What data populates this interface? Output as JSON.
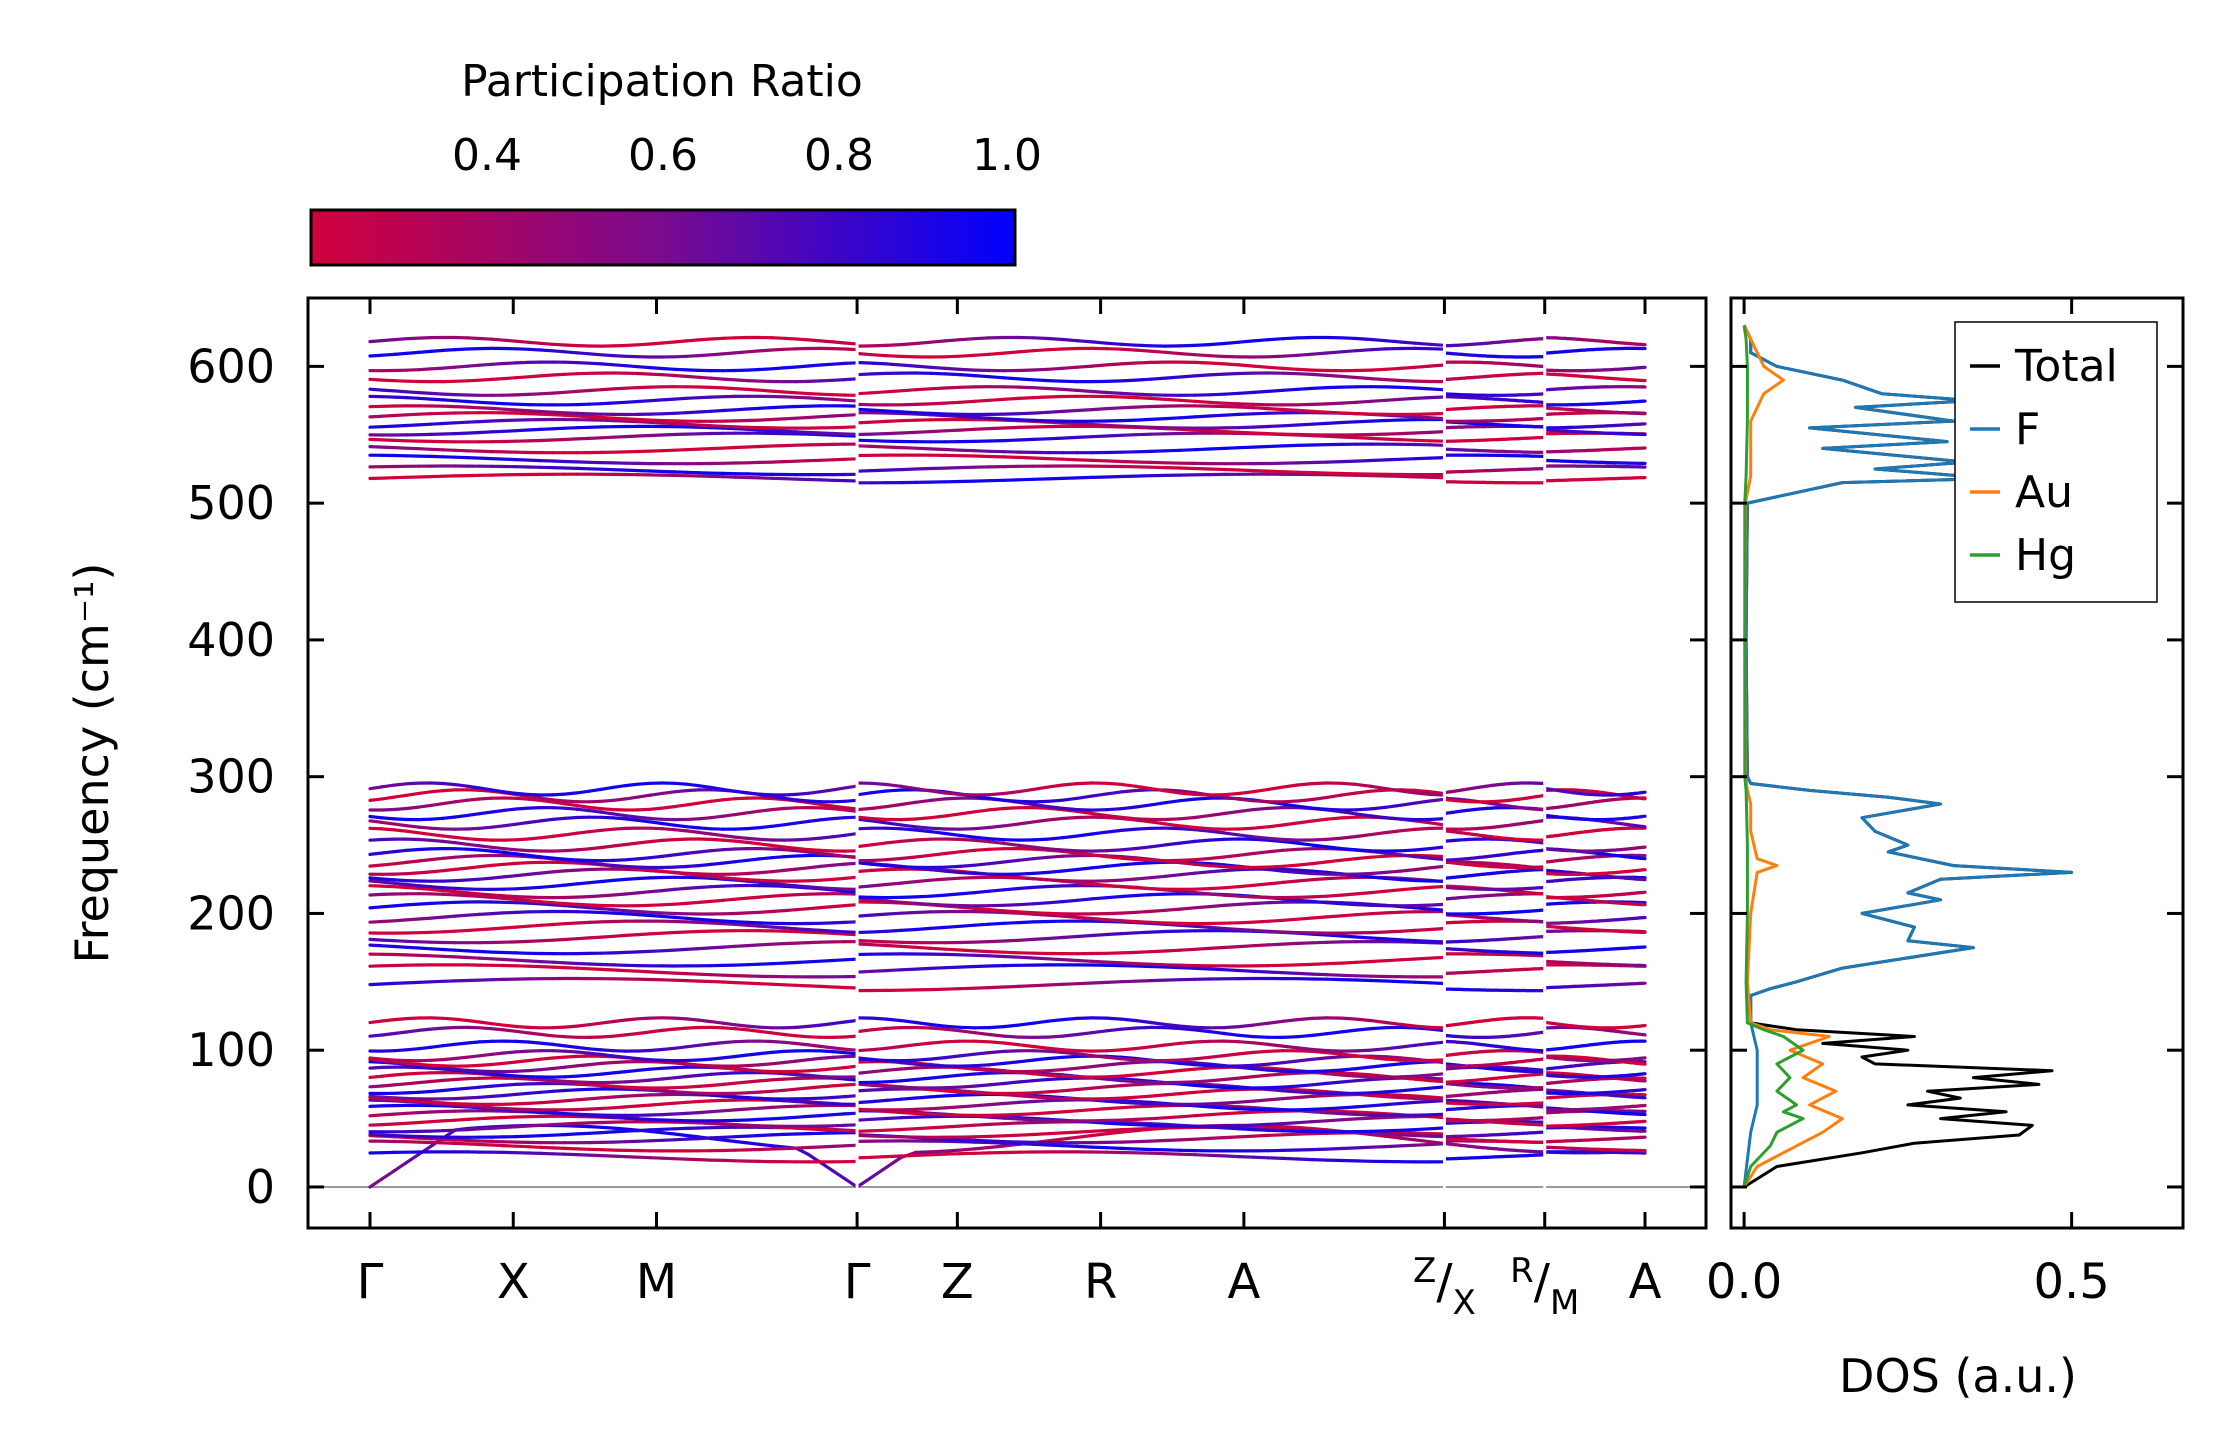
{
  "chart_data": [
    {
      "type": "line",
      "subtype": "phonon-band-structure",
      "ylabel": "Frequency (cm⁻¹)",
      "ylim": [
        -30,
        650
      ],
      "yticks": [
        0,
        100,
        200,
        300,
        400,
        500,
        600
      ],
      "ytick_labels": [
        "0",
        "100",
        "200",
        "300",
        "400",
        "500",
        "600"
      ],
      "kpoint_labels": [
        "Γ",
        "X",
        "M",
        "Γ",
        "Z",
        "R",
        "A",
        "Z/X",
        "R/M",
        "A"
      ],
      "kpoint_positions": [
        0,
        1,
        2,
        3.4,
        4.1,
        5.1,
        6.1,
        7.5,
        8.2,
        8.9
      ],
      "path_breaks": [
        3.4,
        7.5,
        8.2
      ],
      "color_encoding": "participation ratio",
      "band_groups": [
        {
          "name": "acoustic/low",
          "range": [
            0,
            122
          ],
          "bands": [
            0,
            22,
            30,
            36,
            40,
            44,
            48,
            52,
            56,
            60,
            64,
            68,
            72,
            76,
            80,
            84,
            88,
            92,
            96,
            103,
            113,
            120
          ]
        },
        {
          "name": "middle",
          "range": [
            145,
            292
          ],
          "bands": [
            148,
            158,
            166,
            175,
            183,
            190,
            197,
            204,
            210,
            216,
            222,
            228,
            233,
            238,
            243,
            250,
            258,
            266,
            273,
            280,
            286,
            291
          ]
        },
        {
          "name": "high",
          "range": [
            515,
            620
          ],
          "bands": [
            518,
            524,
            532,
            540,
            548,
            553,
            558,
            563,
            568,
            575,
            582,
            592,
            600,
            610,
            618
          ]
        }
      ]
    },
    {
      "type": "line",
      "subtype": "density-of-states",
      "xlabel": "DOS (a.u.)",
      "xlim": [
        -0.02,
        0.67
      ],
      "xticks": [
        0.0,
        0.5
      ],
      "xtick_labels": [
        "0.0",
        "0.5"
      ],
      "ylim": [
        -30,
        650
      ],
      "legend_position": "top-right",
      "series": [
        {
          "name": "Total",
          "color": "#000000",
          "frequency": [
            0,
            15,
            25,
            32,
            38,
            45,
            50,
            55,
            60,
            65,
            70,
            75,
            80,
            85,
            90,
            95,
            100,
            105,
            110,
            115,
            120,
            140,
            145,
            150,
            160,
            175,
            180,
            190,
            200,
            210,
            215,
            225,
            230,
            235,
            245,
            250,
            260,
            270,
            280,
            285,
            290,
            295,
            300,
            400,
            500,
            515,
            518,
            525,
            530,
            540,
            545,
            555,
            560,
            570,
            575,
            580,
            590,
            600,
            610,
            620,
            630
          ],
          "dos": [
            0,
            0.05,
            0.18,
            0.26,
            0.42,
            0.44,
            0.3,
            0.4,
            0.25,
            0.33,
            0.28,
            0.45,
            0.35,
            0.47,
            0.2,
            0.18,
            0.25,
            0.12,
            0.26,
            0.08,
            0.01,
            0.01,
            0.04,
            0.08,
            0.15,
            0.35,
            0.25,
            0.26,
            0.18,
            0.3,
            0.25,
            0.3,
            0.5,
            0.32,
            0.22,
            0.25,
            0.2,
            0.18,
            0.3,
            0.22,
            0.1,
            0.01,
            0.005,
            0.003,
            0.005,
            0.15,
            0.38,
            0.2,
            0.34,
            0.12,
            0.31,
            0.1,
            0.32,
            0.17,
            0.35,
            0.21,
            0.15,
            0.05,
            0.01,
            0.01,
            0
          ],
          "labels": []
        },
        {
          "name": "F",
          "color": "#1f77b4",
          "frequency": [
            0,
            20,
            40,
            60,
            80,
            100,
            120,
            140,
            145,
            150,
            160,
            175,
            180,
            190,
            200,
            210,
            215,
            225,
            230,
            235,
            245,
            250,
            260,
            270,
            280,
            285,
            290,
            295,
            300,
            400,
            500,
            515,
            518,
            525,
            530,
            540,
            545,
            555,
            560,
            570,
            575,
            580,
            590,
            600,
            610,
            620,
            630
          ],
          "dos": [
            0,
            0.005,
            0.01,
            0.02,
            0.02,
            0.02,
            0.01,
            0.01,
            0.04,
            0.08,
            0.15,
            0.35,
            0.25,
            0.26,
            0.18,
            0.3,
            0.25,
            0.3,
            0.5,
            0.32,
            0.22,
            0.25,
            0.2,
            0.18,
            0.3,
            0.22,
            0.1,
            0.01,
            0.005,
            0.003,
            0.005,
            0.15,
            0.38,
            0.2,
            0.34,
            0.12,
            0.31,
            0.1,
            0.32,
            0.17,
            0.35,
            0.21,
            0.15,
            0.05,
            0.01,
            0.01,
            0
          ]
        },
        {
          "name": "Au",
          "color": "#ff7f0e",
          "frequency": [
            0,
            15,
            30,
            40,
            50,
            60,
            70,
            80,
            90,
            100,
            110,
            115,
            120,
            150,
            200,
            230,
            235,
            240,
            260,
            280,
            290,
            300,
            400,
            500,
            520,
            560,
            580,
            590,
            600,
            620,
            630
          ],
          "dos": [
            0,
            0.02,
            0.08,
            0.12,
            0.15,
            0.1,
            0.14,
            0.09,
            0.12,
            0.07,
            0.13,
            0.04,
            0.01,
            0.005,
            0.01,
            0.02,
            0.05,
            0.02,
            0.01,
            0.01,
            0.005,
            0.002,
            0.001,
            0.002,
            0.01,
            0.01,
            0.03,
            0.06,
            0.03,
            0.01,
            0
          ]
        },
        {
          "name": "Hg",
          "color": "#2ca02c",
          "frequency": [
            0,
            15,
            30,
            40,
            50,
            55,
            60,
            70,
            80,
            90,
            100,
            110,
            115,
            120,
            150,
            200,
            250,
            290,
            300,
            400,
            500,
            520,
            560,
            600,
            620,
            630
          ],
          "dos": [
            0,
            0.01,
            0.04,
            0.05,
            0.09,
            0.06,
            0.08,
            0.05,
            0.07,
            0.05,
            0.09,
            0.06,
            0.03,
            0.005,
            0.003,
            0.005,
            0.005,
            0.003,
            0.001,
            0.001,
            0.001,
            0.003,
            0.005,
            0.005,
            0.003,
            0
          ]
        }
      ]
    },
    {
      "type": "colorbar",
      "title": "Participation Ratio",
      "range": [
        0.2,
        1.0
      ],
      "ticks": [
        0.4,
        0.6,
        0.8,
        1.0
      ],
      "tick_labels": [
        "0.4",
        "0.6",
        "0.8",
        "1.0"
      ],
      "color_low": "#d1003c",
      "color_high": "#0000ff"
    }
  ]
}
